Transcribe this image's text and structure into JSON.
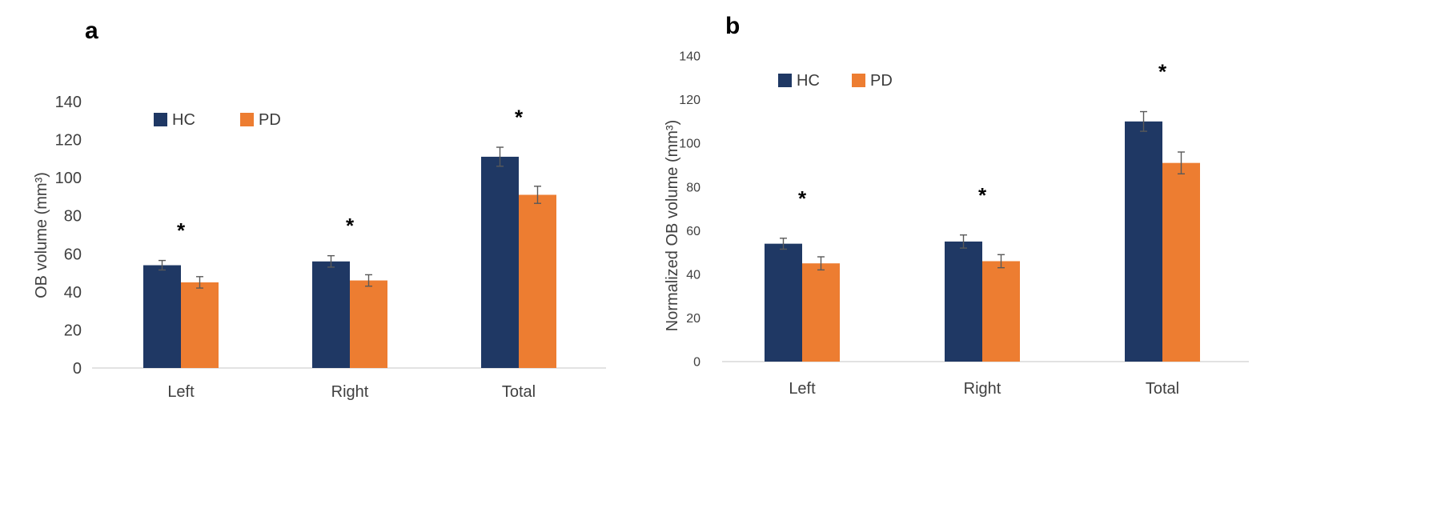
{
  "figure": {
    "background": "#ffffff"
  },
  "chart_data": [
    {
      "type": "bar",
      "panel_label": "a",
      "title": "",
      "ylabel": "OB volume (mm³)",
      "xlabel": "",
      "categories": [
        "Left",
        "Right",
        "Total"
      ],
      "series": [
        {
          "name": "HC",
          "color": "#1f3864",
          "values": [
            54,
            56,
            111
          ],
          "errors": [
            2.5,
            3,
            5
          ]
        },
        {
          "name": "PD",
          "color": "#ed7d31",
          "values": [
            45,
            46,
            91
          ],
          "errors": [
            3,
            3,
            4.5
          ]
        }
      ],
      "ylim": [
        0,
        140
      ],
      "ytick_step": 20,
      "yticks": [
        0,
        20,
        40,
        60,
        80,
        100,
        120,
        140
      ],
      "significance": [
        "*",
        "*",
        "*"
      ],
      "legend_position": "top-left-inset",
      "grid": false,
      "error_bars": true
    },
    {
      "type": "bar",
      "panel_label": "b",
      "title": "",
      "ylabel": "Normalized OB volume (mm³)",
      "xlabel": "",
      "categories": [
        "Left",
        "Right",
        "Total"
      ],
      "series": [
        {
          "name": "HC",
          "color": "#1f3864",
          "values": [
            54,
            55,
            110
          ],
          "errors": [
            2.5,
            3,
            4.5
          ]
        },
        {
          "name": "PD",
          "color": "#ed7d31",
          "values": [
            45,
            46,
            91
          ],
          "errors": [
            3,
            3,
            5
          ]
        }
      ],
      "ylim": [
        0,
        140
      ],
      "ytick_step": 20,
      "yticks": [
        0,
        20,
        40,
        60,
        80,
        100,
        120,
        140
      ],
      "significance": [
        "*",
        "*",
        "*"
      ],
      "legend_position": "top-left-inset",
      "grid": false,
      "error_bars": true
    }
  ]
}
